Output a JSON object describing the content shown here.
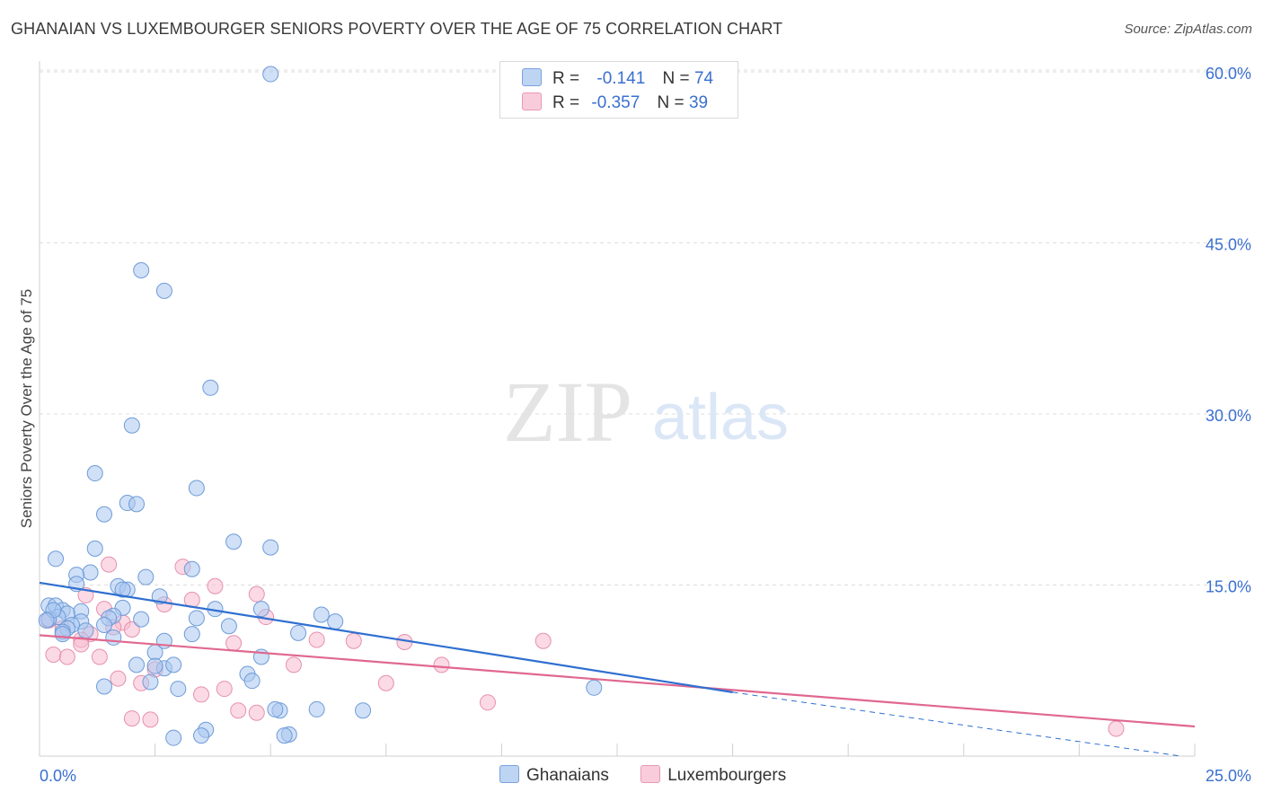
{
  "title": "GHANAIAN VS LUXEMBOURGER SENIORS POVERTY OVER THE AGE OF 75 CORRELATION CHART",
  "source": "Source: ZipAtlas.com",
  "watermark": {
    "zip": "ZIP",
    "atlas": "atlas"
  },
  "legend": {
    "rows": [
      {
        "r_label": "R =",
        "r_value": "-0.141",
        "n_label": "N =",
        "n_value": "74"
      },
      {
        "r_label": "R =",
        "r_value": "-0.357",
        "n_label": "N =",
        "n_value": "39"
      }
    ]
  },
  "colors": {
    "ghanaians_fill": "#a9c7f0",
    "ghanaians_stroke": "#6e9bd8",
    "ghanaians_line": "#2f6fd0",
    "luxembourgers_fill": "#f7bcd0",
    "luxembourgers_stroke": "#e690ae",
    "luxembourgers_line": "#e0688f",
    "tick_label": "#3a6fd0",
    "grid": "#dddddd"
  },
  "chart_data": {
    "type": "scatter",
    "title": "GHANAIAN VS LUXEMBOURGER SENIORS POVERTY OVER THE AGE OF 75 CORRELATION CHART",
    "xlabel": "",
    "ylabel": "Seniors Poverty Over the Age of 75",
    "xlim": [
      0,
      25
    ],
    "ylim": [
      0,
      62
    ],
    "x_tick_labels": [
      "0.0%",
      "25.0%"
    ],
    "y_ticks": [
      15,
      30,
      45,
      60
    ],
    "y_tick_labels": [
      "15.0%",
      "30.0%",
      "45.0%",
      "60.0%"
    ],
    "grid": true,
    "legend_position": "top-center",
    "series": [
      {
        "name": "Ghanaians",
        "points": [
          [
            5.0,
            59.8
          ],
          [
            2.2,
            42.6
          ],
          [
            2.7,
            40.8
          ],
          [
            3.7,
            32.3
          ],
          [
            2.0,
            29.0
          ],
          [
            1.2,
            24.8
          ],
          [
            3.4,
            23.5
          ],
          [
            1.9,
            22.2
          ],
          [
            2.1,
            22.1
          ],
          [
            1.4,
            21.2
          ],
          [
            4.2,
            18.8
          ],
          [
            5.0,
            18.3
          ],
          [
            1.2,
            18.2
          ],
          [
            0.35,
            17.3
          ],
          [
            3.3,
            16.4
          ],
          [
            1.1,
            16.1
          ],
          [
            0.8,
            15.9
          ],
          [
            2.3,
            15.7
          ],
          [
            0.8,
            15.1
          ],
          [
            1.7,
            14.9
          ],
          [
            1.9,
            14.6
          ],
          [
            1.8,
            14.6
          ],
          [
            2.6,
            14.0
          ],
          [
            0.2,
            13.2
          ],
          [
            0.35,
            13.2
          ],
          [
            1.8,
            13.0
          ],
          [
            3.8,
            12.9
          ],
          [
            0.5,
            12.8
          ],
          [
            4.8,
            12.9
          ],
          [
            0.9,
            12.7
          ],
          [
            0.6,
            12.5
          ],
          [
            6.1,
            12.4
          ],
          [
            1.6,
            12.3
          ],
          [
            0.4,
            12.2
          ],
          [
            0.2,
            12.0
          ],
          [
            3.4,
            12.1
          ],
          [
            1.5,
            12.1
          ],
          [
            6.4,
            11.8
          ],
          [
            0.9,
            11.8
          ],
          [
            0.7,
            11.5
          ],
          [
            1.4,
            11.5
          ],
          [
            4.1,
            11.4
          ],
          [
            0.6,
            11.2
          ],
          [
            0.5,
            10.9
          ],
          [
            5.6,
            10.8
          ],
          [
            3.3,
            10.7
          ],
          [
            1.6,
            10.4
          ],
          [
            2.7,
            10.1
          ],
          [
            2.5,
            9.1
          ],
          [
            4.8,
            8.7
          ],
          [
            2.1,
            8.0
          ],
          [
            2.7,
            7.7
          ],
          [
            2.9,
            8.0
          ],
          [
            2.5,
            7.9
          ],
          [
            4.5,
            7.2
          ],
          [
            4.6,
            6.6
          ],
          [
            2.4,
            6.5
          ],
          [
            1.4,
            6.1
          ],
          [
            3.0,
            5.9
          ],
          [
            12.0,
            6.0
          ],
          [
            5.2,
            4.0
          ],
          [
            6.0,
            4.1
          ],
          [
            7.0,
            4.0
          ],
          [
            5.1,
            4.1
          ],
          [
            3.6,
            2.3
          ],
          [
            5.4,
            1.9
          ],
          [
            5.3,
            1.8
          ],
          [
            2.9,
            1.6
          ],
          [
            3.5,
            1.8
          ],
          [
            0.3,
            12.8
          ],
          [
            0.5,
            10.7
          ],
          [
            1.0,
            11.0
          ],
          [
            2.2,
            12.0
          ],
          [
            0.15,
            11.9
          ]
        ],
        "trend": {
          "x": [
            0,
            15
          ],
          "y": [
            15.2,
            5.6
          ]
        },
        "trend_dashed": {
          "x": [
            15,
            24.7
          ],
          "y": [
            5.6,
            0.0
          ]
        }
      },
      {
        "name": "Luxembourgers",
        "points": [
          [
            1.5,
            16.8
          ],
          [
            3.1,
            16.6
          ],
          [
            3.8,
            14.9
          ],
          [
            4.7,
            14.2
          ],
          [
            1.0,
            14.1
          ],
          [
            3.3,
            13.7
          ],
          [
            2.7,
            13.3
          ],
          [
            1.4,
            12.9
          ],
          [
            4.9,
            12.2
          ],
          [
            0.2,
            11.9
          ],
          [
            1.8,
            11.7
          ],
          [
            0.5,
            11.2
          ],
          [
            1.6,
            11.3
          ],
          [
            2.0,
            11.1
          ],
          [
            1.1,
            10.7
          ],
          [
            0.9,
            10.2
          ],
          [
            6.0,
            10.2
          ],
          [
            6.8,
            10.1
          ],
          [
            7.9,
            10.0
          ],
          [
            4.2,
            9.9
          ],
          [
            10.9,
            10.1
          ],
          [
            0.9,
            9.8
          ],
          [
            0.3,
            8.9
          ],
          [
            0.6,
            8.7
          ],
          [
            1.3,
            8.7
          ],
          [
            5.5,
            8.0
          ],
          [
            8.7,
            8.0
          ],
          [
            2.5,
            7.6
          ],
          [
            1.7,
            6.8
          ],
          [
            2.2,
            6.4
          ],
          [
            7.5,
            6.4
          ],
          [
            4.0,
            5.9
          ],
          [
            3.5,
            5.4
          ],
          [
            9.7,
            4.7
          ],
          [
            4.3,
            4.0
          ],
          [
            4.7,
            3.8
          ],
          [
            2.0,
            3.3
          ],
          [
            2.4,
            3.2
          ],
          [
            23.3,
            2.4
          ]
        ],
        "trend": {
          "x": [
            0,
            25
          ],
          "y": [
            10.6,
            2.6
          ]
        }
      }
    ]
  },
  "bottom_legend": [
    {
      "label": "Ghanaians"
    },
    {
      "label": "Luxembourgers"
    }
  ]
}
